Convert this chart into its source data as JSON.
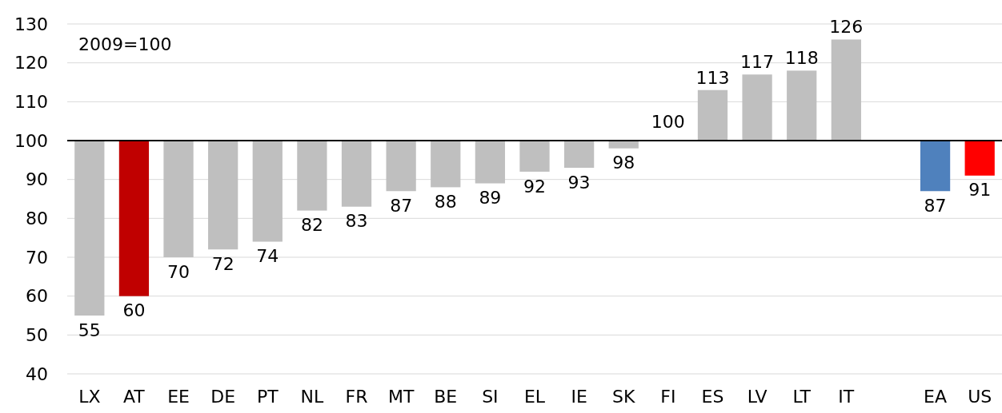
{
  "chart_data": {
    "type": "bar",
    "categories": [
      "LX",
      "AT",
      "EE",
      "DE",
      "PT",
      "NL",
      "FR",
      "MT",
      "BE",
      "SI",
      "EL",
      "IE",
      "SK",
      "FI",
      "ES",
      "LV",
      "LT",
      "IT",
      null,
      "EA",
      "US"
    ],
    "base": [
      100,
      100,
      100,
      100,
      100,
      100,
      100,
      100,
      100,
      100,
      100,
      100,
      100,
      null,
      100,
      100,
      100,
      100,
      null,
      100,
      100
    ],
    "values": [
      -45,
      -40,
      -30,
      -28,
      -26,
      -18,
      -17,
      -13,
      -12,
      -11,
      -8,
      -7,
      -2,
      null,
      13,
      17,
      18,
      26,
      null,
      -13,
      -9
    ],
    "value_labels": [
      "55",
      "60",
      "70",
      "72",
      "74",
      "82",
      "83",
      "87",
      "88",
      "89",
      "92",
      "93",
      "98",
      null,
      "113",
      "117",
      "118",
      "126",
      null,
      "87",
      "91"
    ],
    "colors": [
      "#bfbfbf",
      "#c00000",
      "#bfbfbf",
      "#bfbfbf",
      "#bfbfbf",
      "#bfbfbf",
      "#bfbfbf",
      "#bfbfbf",
      "#bfbfbf",
      "#bfbfbf",
      "#bfbfbf",
      "#bfbfbf",
      "#bfbfbf",
      null,
      "#bfbfbf",
      "#bfbfbf",
      "#bfbfbf",
      "#bfbfbf",
      null,
      "#4f81bd",
      "#ff0000"
    ],
    "ylim": [
      40,
      130
    ],
    "yticks": [
      40,
      50,
      60,
      70,
      80,
      90,
      100,
      110,
      120,
      130
    ],
    "grid": "y",
    "ref_lines": [
      {
        "axis": "y",
        "value": 100,
        "color": "#000000"
      }
    ],
    "annotations": [
      "2009=100",
      {
        "text": "100",
        "x": "FI",
        "y": 100
      }
    ]
  }
}
